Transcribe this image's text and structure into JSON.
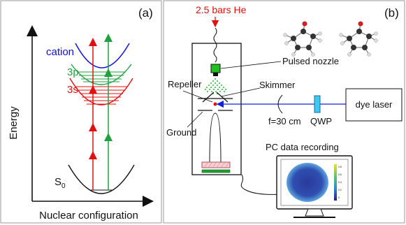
{
  "panel_a": {
    "tag": "(a)",
    "ylabel": "Energy",
    "xlabel": "Nuclear configuration",
    "states": {
      "cation": "cation",
      "p3": "3p",
      "s3": "3s",
      "s0_base": "S",
      "s0_sub": "0"
    },
    "colors": {
      "cation": "#1010e0",
      "p3": "#20a040",
      "s3": "#e01010",
      "ground": "#111111"
    }
  },
  "panel_b": {
    "tag": "(b)",
    "gas": "2.5 bars He",
    "nozzle": "Pulsed nozzle",
    "repeller": "Repeller",
    "skimmer": "Skimmer",
    "ground": "Ground",
    "lens": "f=30 cm",
    "qwp": "QWP",
    "laser": "dye laser",
    "pc": "PC data recording",
    "colorbar_ticks": [
      "0.8",
      "0.6",
      "0.4",
      "0.2",
      "0"
    ]
  }
}
